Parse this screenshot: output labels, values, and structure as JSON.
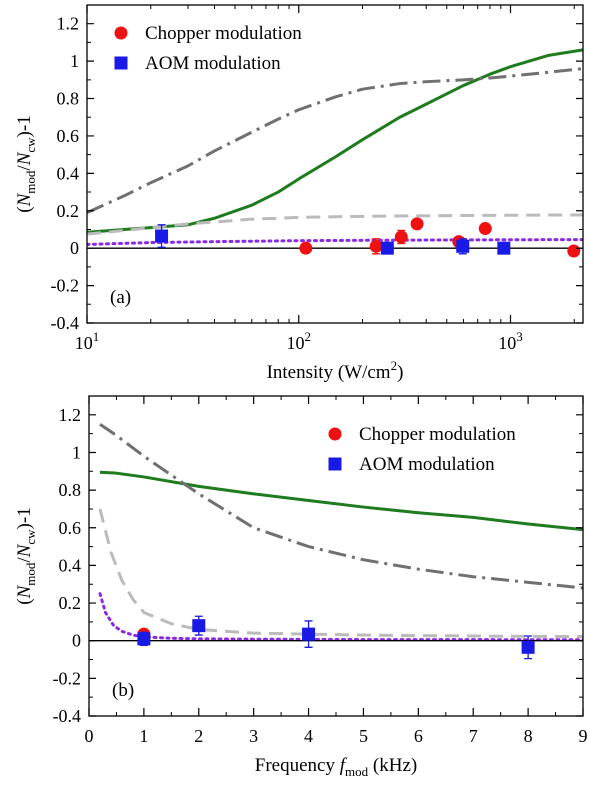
{
  "chart_data": [
    {
      "type": "scatter",
      "panel_label": "(a)",
      "xlabel_main": "Intensity (W/cm",
      "xlabel_sup": "2",
      "xlabel_tail": ")",
      "ylabel": {
        "open": "(",
        "N1": "N",
        "sub1": "mod",
        "slash": "/",
        "N2": "N",
        "sub2": "cw",
        "tail": ")-1"
      },
      "x_scale": "log",
      "xlim": [
        10,
        2200
      ],
      "ylim": [
        -0.4,
        1.3
      ],
      "x_ticks": [
        {
          "v": 10,
          "base": "10",
          "exp": "1"
        },
        {
          "v": 100,
          "base": "10",
          "exp": "2"
        },
        {
          "v": 1000,
          "base": "10",
          "exp": "3"
        }
      ],
      "y_ticks": [
        {
          "v": -0.4,
          "label": "-0.4"
        },
        {
          "v": -0.2,
          "label": "-0.2"
        },
        {
          "v": 0,
          "label": "0"
        },
        {
          "v": 0.2,
          "label": "0.2"
        },
        {
          "v": 0.4,
          "label": "0.4"
        },
        {
          "v": 0.6,
          "label": "0.6"
        },
        {
          "v": 0.8,
          "label": "0.8"
        },
        {
          "v": 1,
          "label": "1"
        },
        {
          "v": 1.2,
          "label": "1.2"
        }
      ],
      "legend": {
        "position": "top-left",
        "entries": [
          {
            "label": "Chopper modulation",
            "marker": "circle",
            "color": "#ee1111"
          },
          {
            "label": "AOM modulation",
            "marker": "square",
            "color": "#1a1ae6"
          }
        ]
      },
      "points": [
        {
          "series": "Chopper modulation",
          "marker": "circle",
          "color": "#ee1111",
          "data": [
            {
              "x": 108,
              "y": 0.0,
              "err": 0.025
            },
            {
              "x": 232,
              "y": 0.01,
              "err": 0.04
            },
            {
              "x": 305,
              "y": 0.06,
              "err": 0.035
            },
            {
              "x": 362,
              "y": 0.13,
              "err": 0.0
            },
            {
              "x": 570,
              "y": 0.035,
              "err": 0.02
            },
            {
              "x": 760,
              "y": 0.105,
              "err": 0.0
            },
            {
              "x": 1990,
              "y": -0.015,
              "err": 0.0
            }
          ]
        },
        {
          "series": "AOM modulation",
          "marker": "square",
          "color": "#1a1ae6",
          "data": [
            {
              "x": 22.5,
              "y": 0.065,
              "err": 0.06
            },
            {
              "x": 262,
              "y": 0.0,
              "err": 0.025
            },
            {
              "x": 595,
              "y": 0.01,
              "err": 0.04
            },
            {
              "x": 930,
              "y": 0.0,
              "err": 0.02
            }
          ]
        }
      ],
      "curves": [
        {
          "style": "solid-green",
          "color": "#1e7b1e",
          "x": [
            10,
            15,
            20,
            30,
            40,
            60,
            80,
            100,
            150,
            200,
            300,
            400,
            600,
            800,
            1000,
            1500,
            2200
          ],
          "y": [
            0.085,
            0.1,
            0.11,
            0.125,
            0.16,
            0.23,
            0.3,
            0.37,
            0.49,
            0.58,
            0.7,
            0.77,
            0.87,
            0.93,
            0.97,
            1.03,
            1.06
          ]
        },
        {
          "style": "dashdot-gray",
          "color": "#707070",
          "x": [
            10,
            15,
            20,
            30,
            40,
            60,
            80,
            100,
            150,
            200,
            300,
            400,
            600,
            800,
            1000,
            1500,
            2200
          ],
          "y": [
            0.19,
            0.28,
            0.35,
            0.44,
            0.52,
            0.62,
            0.69,
            0.74,
            0.81,
            0.85,
            0.88,
            0.89,
            0.9,
            0.91,
            0.92,
            0.94,
            0.96
          ]
        },
        {
          "style": "dashed-lightgray",
          "color": "#bbbbbb",
          "x": [
            10,
            15,
            20,
            30,
            40,
            60,
            80,
            100,
            150,
            200,
            300,
            500,
            1000,
            2200
          ],
          "y": [
            0.075,
            0.095,
            0.11,
            0.13,
            0.14,
            0.155,
            0.16,
            0.165,
            0.168,
            0.17,
            0.172,
            0.174,
            0.176,
            0.178
          ]
        },
        {
          "style": "dotted-purple",
          "color": "#8a2be2",
          "x": [
            10,
            20,
            40,
            100,
            200,
            500,
            1000,
            2200
          ],
          "y": [
            0.02,
            0.03,
            0.035,
            0.04,
            0.042,
            0.044,
            0.045,
            0.046
          ]
        },
        {
          "style": "solid-black-zero",
          "color": "#000000",
          "x": [
            10,
            2200
          ],
          "y": [
            0,
            0
          ]
        }
      ]
    },
    {
      "type": "scatter",
      "panel_label": "(b)",
      "xlabel_main": "Frequency ",
      "xlabel_f": "f",
      "xlabel_sub": "mod",
      "xlabel_tail": " (kHz)",
      "ylabel": {
        "open": "(",
        "N1": "N",
        "sub1": "mod",
        "slash": "/",
        "N2": "N",
        "sub2": "cw",
        "tail": ")-1"
      },
      "x_scale": "linear",
      "xlim": [
        0,
        9
      ],
      "ylim": [
        -0.4,
        1.3
      ],
      "x_ticks": [
        {
          "v": 0,
          "label": "0"
        },
        {
          "v": 1,
          "label": "1"
        },
        {
          "v": 2,
          "label": "2"
        },
        {
          "v": 3,
          "label": "3"
        },
        {
          "v": 4,
          "label": "4"
        },
        {
          "v": 5,
          "label": "5"
        },
        {
          "v": 6,
          "label": "6"
        },
        {
          "v": 7,
          "label": "7"
        },
        {
          "v": 8,
          "label": "8"
        },
        {
          "v": 9,
          "label": "9"
        }
      ],
      "y_ticks": [
        {
          "v": -0.4,
          "label": "-0.4"
        },
        {
          "v": -0.2,
          "label": "-0.2"
        },
        {
          "v": 0,
          "label": "0"
        },
        {
          "v": 0.2,
          "label": "0.2"
        },
        {
          "v": 0.4,
          "label": "0.4"
        },
        {
          "v": 0.6,
          "label": "0.6"
        },
        {
          "v": 0.8,
          "label": "0.8"
        },
        {
          "v": 1,
          "label": "1"
        },
        {
          "v": 1.2,
          "label": "1.2"
        }
      ],
      "legend": {
        "position": "top-right",
        "entries": [
          {
            "label": "Chopper modulation",
            "marker": "circle",
            "color": "#ee1111"
          },
          {
            "label": "AOM modulation",
            "marker": "square",
            "color": "#1a1ae6"
          }
        ]
      },
      "points": [
        {
          "series": "Chopper modulation",
          "marker": "circle",
          "color": "#ee1111",
          "data": [
            {
              "x": 1.0,
              "y": 0.035,
              "err": 0.0
            }
          ]
        },
        {
          "series": "AOM modulation",
          "marker": "square",
          "color": "#1a1ae6",
          "data": [
            {
              "x": 1.0,
              "y": 0.01,
              "err": 0.035
            },
            {
              "x": 2.0,
              "y": 0.08,
              "err": 0.05
            },
            {
              "x": 4.0,
              "y": 0.035,
              "err": 0.07
            },
            {
              "x": 8.0,
              "y": -0.035,
              "err": 0.06
            }
          ]
        }
      ],
      "curves": [
        {
          "style": "solid-green",
          "color": "#1e7b1e",
          "x": [
            0.2,
            0.5,
            1,
            2,
            3,
            4,
            5,
            6,
            7,
            8,
            9
          ],
          "y": [
            0.895,
            0.89,
            0.87,
            0.82,
            0.78,
            0.745,
            0.71,
            0.68,
            0.655,
            0.62,
            0.59
          ]
        },
        {
          "style": "dashdot-gray",
          "color": "#707070",
          "x": [
            0.2,
            0.5,
            1,
            1.5,
            2,
            3,
            4,
            5,
            6,
            7,
            8,
            9
          ],
          "y": [
            1.15,
            1.09,
            0.98,
            0.88,
            0.78,
            0.6,
            0.5,
            0.43,
            0.38,
            0.34,
            0.31,
            0.28
          ]
        },
        {
          "style": "dashed-lightgray",
          "color": "#bbbbbb",
          "x": [
            0.2,
            0.4,
            0.6,
            0.8,
            1,
            1.5,
            2,
            3,
            4,
            5,
            6,
            7,
            8,
            9
          ],
          "y": [
            0.7,
            0.47,
            0.32,
            0.22,
            0.15,
            0.09,
            0.06,
            0.04,
            0.035,
            0.03,
            0.027,
            0.025,
            0.023,
            0.022
          ]
        },
        {
          "style": "dotted-purple",
          "color": "#8a2be2",
          "x": [
            0.2,
            0.3,
            0.45,
            0.6,
            0.8,
            1,
            1.5,
            2,
            3,
            5,
            9
          ],
          "y": [
            0.25,
            0.15,
            0.08,
            0.05,
            0.03,
            0.02,
            0.013,
            0.01,
            0.008,
            0.006,
            0.005
          ]
        },
        {
          "style": "solid-black-zero",
          "color": "#000000",
          "x": [
            0,
            9
          ],
          "y": [
            0,
            0
          ]
        }
      ]
    }
  ]
}
